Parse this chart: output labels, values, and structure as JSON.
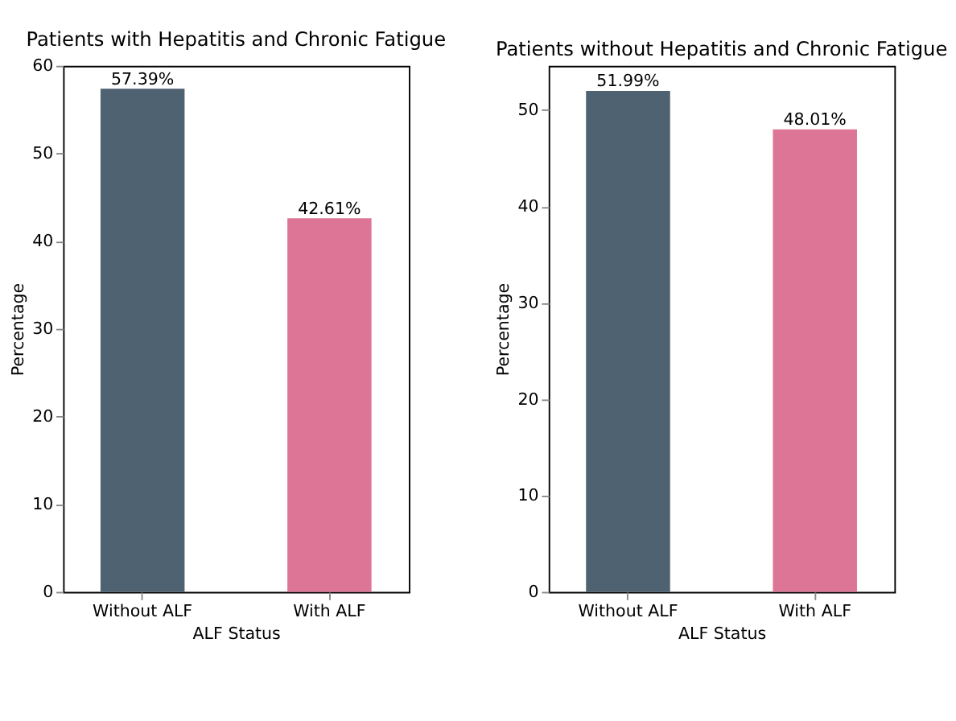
{
  "chart_data": [
    {
      "type": "bar",
      "title": "Patients with Hepatitis and Chronic Fatigue",
      "xlabel": "ALF Status",
      "ylabel": "Percentage",
      "categories": [
        "Without ALF",
        "With ALF"
      ],
      "values": [
        57.39,
        42.61
      ],
      "colors": [
        "#4f6272",
        "#dd7596"
      ],
      "value_labels": [
        "57.39%",
        "42.61%"
      ],
      "ylim": [
        0,
        60
      ],
      "yticks": [
        0,
        10,
        20,
        30,
        40,
        50,
        60
      ],
      "grid": false
    },
    {
      "type": "bar",
      "title": "Patients without Hepatitis and Chronic Fatigue",
      "xlabel": "ALF Status",
      "ylabel": "Percentage",
      "categories": [
        "Without ALF",
        "With ALF"
      ],
      "values": [
        51.99,
        48.01
      ],
      "colors": [
        "#4f6272",
        "#dd7596"
      ],
      "value_labels": [
        "51.99%",
        "48.01%"
      ],
      "ylim": [
        0,
        54.6
      ],
      "yticks": [
        0,
        10,
        20,
        30,
        40,
        50
      ],
      "grid": false
    }
  ]
}
